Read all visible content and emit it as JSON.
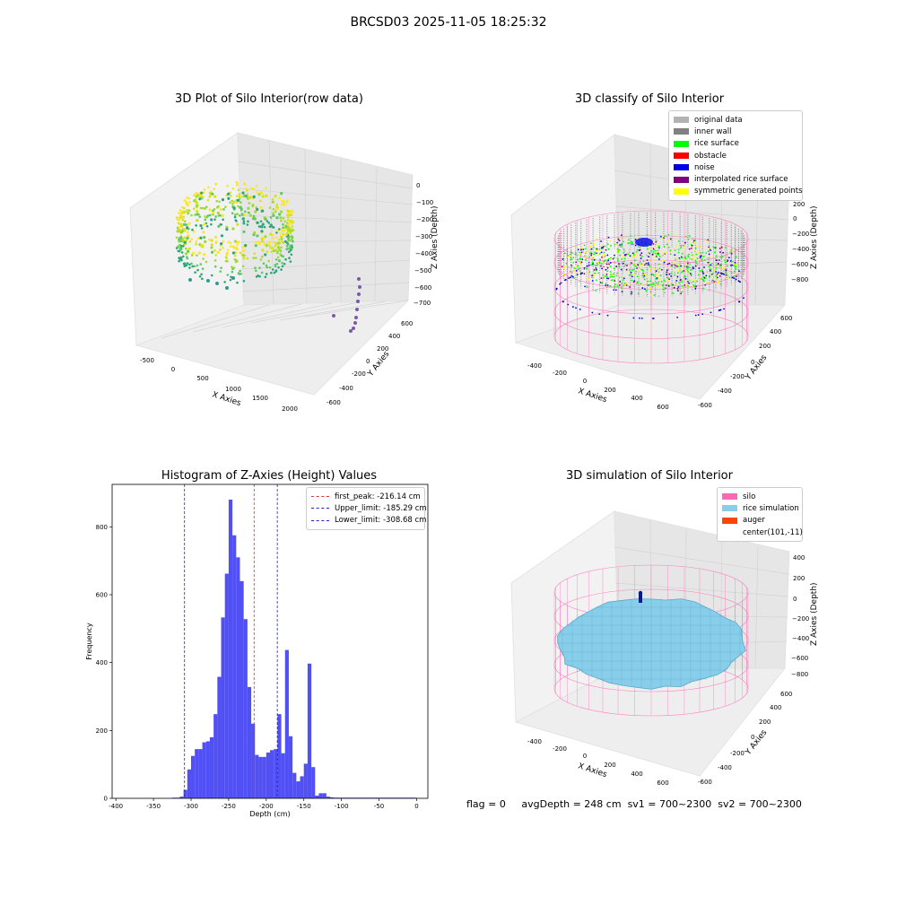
{
  "suptitle": "BRCSD03 2025-11-05 18:25:32",
  "status": {
    "flag": "flag = 0",
    "avg_depth": "avgDepth = 248 cm",
    "sv1": "sv1 = 700~2300",
    "sv2": "sv2 = 700~2300"
  },
  "colors": {
    "hist_bar": "#5050f5",
    "peak_line": "#e03030",
    "limit_line": "#2020d0",
    "silo": "#ff69b4",
    "rice": "#87ceeb",
    "auger": "#ff4500",
    "noise": "#0000ee"
  },
  "chart_data": [
    {
      "type": "scatter3d",
      "title": "3D Plot of Silo Interior(row data)",
      "xlabel": "X Axies",
      "ylabel": "Y Axies",
      "zlabel": "Z Axies (Depth)",
      "x_ticks": [
        "-500",
        "0",
        "500",
        "1000",
        "1500",
        "2000"
      ],
      "y_ticks": [
        "-600",
        "-400",
        "-200",
        "0",
        "200",
        "400",
        "600"
      ],
      "z_ticks": [
        "0",
        "−100",
        "−200",
        "−300",
        "−400",
        "−500",
        "−600",
        "−700"
      ],
      "colormap": "viridis"
    },
    {
      "type": "scatter3d",
      "title": "3D classify of Silo Interior",
      "xlabel": "X Axies",
      "ylabel": "Y Axies",
      "zlabel": "Z Axies (Depth)",
      "x_ticks": [
        "-400",
        "-200",
        "0",
        "200",
        "400",
        "600"
      ],
      "y_ticks": [
        "-600",
        "-400",
        "-200",
        "0",
        "200",
        "400",
        "600"
      ],
      "z_ticks": [
        "200",
        "0",
        "−200",
        "−400",
        "−600",
        "−800"
      ],
      "legend": [
        {
          "label": "original data",
          "color": "#b3b3b3"
        },
        {
          "label": "inner wall",
          "color": "#808080"
        },
        {
          "label": "rice surface",
          "color": "#00ff00"
        },
        {
          "label": "obstacle",
          "color": "#ff0000"
        },
        {
          "label": "noise",
          "color": "#0000ee"
        },
        {
          "label": "interpolated rice surface",
          "color": "#800080"
        },
        {
          "label": "symmetric generated points",
          "color": "#ffff00"
        }
      ]
    },
    {
      "type": "bar",
      "title": "Histogram of Z-Axies (Height) Values",
      "xlabel": "Depth (cm)",
      "ylabel": "Frequency",
      "xlim": [
        -405,
        15
      ],
      "ylim": [
        0,
        925
      ],
      "x_ticks": [
        -400,
        -350,
        -300,
        -250,
        -200,
        -150,
        -100,
        -50,
        0
      ],
      "y_ticks": [
        0,
        200,
        400,
        600,
        800
      ],
      "bin_width": 5,
      "bin_starts": [
        -325,
        -320,
        -315,
        -310,
        -305,
        -300,
        -295,
        -290,
        -285,
        -280,
        -275,
        -270,
        -265,
        -260,
        -255,
        -250,
        -245,
        -240,
        -235,
        -230,
        -225,
        -220,
        -215,
        -210,
        -205,
        -200,
        -195,
        -190,
        -185,
        -180,
        -175,
        -170,
        -165,
        -160,
        -155,
        -150,
        -145,
        -140,
        -135,
        -130,
        -125,
        -120,
        -115,
        -110,
        -105,
        -100,
        -95,
        -90,
        -85,
        -80,
        -75,
        -70,
        -65,
        -60,
        -55,
        -50,
        -45,
        -40,
        -35,
        -30,
        -25,
        -20,
        -15,
        -10,
        -5
      ],
      "values": [
        2,
        2,
        5,
        25,
        85,
        125,
        145,
        145,
        165,
        168,
        180,
        248,
        358,
        533,
        662,
        880,
        775,
        710,
        640,
        528,
        328,
        220,
        128,
        122,
        122,
        135,
        142,
        145,
        248,
        133,
        437,
        183,
        75,
        50,
        65,
        102,
        397,
        92,
        8,
        15,
        15,
        5,
        3,
        2,
        2,
        2,
        2,
        2,
        2,
        2,
        2,
        2,
        2,
        2,
        2,
        2,
        2,
        2,
        2,
        2,
        2,
        2,
        2,
        2,
        2
      ],
      "vlines": [
        {
          "label": "first_peak: -216.14 cm",
          "x": -216.14,
          "color": "#e03030"
        },
        {
          "label": "Upper_limit: -185.29 cm",
          "x": -185.29,
          "color": "#2020d0"
        },
        {
          "label": "Lower_limit: -308.68 cm",
          "x": -308.68,
          "color": "#2020d0"
        }
      ]
    },
    {
      "type": "surface3d",
      "title": "3D simulation of Silo Interior",
      "xlabel": "X Axies",
      "ylabel": "Y Axies",
      "zlabel": "Z Axies (Depth)",
      "x_ticks": [
        "-400",
        "-200",
        "0",
        "200",
        "400",
        "600"
      ],
      "y_ticks": [
        "-600",
        "-400",
        "-200",
        "0",
        "200",
        "400",
        "600"
      ],
      "z_ticks": [
        "400",
        "200",
        "0",
        "−200",
        "−400",
        "−600",
        "−800"
      ],
      "legend": [
        {
          "label": "silo",
          "color": "#ff69b4"
        },
        {
          "label": "rice simulation",
          "color": "#87ceeb"
        },
        {
          "label": "auger",
          "color": "#ff4500"
        },
        {
          "label": "center(101,-11)",
          "color": ""
        }
      ]
    }
  ]
}
